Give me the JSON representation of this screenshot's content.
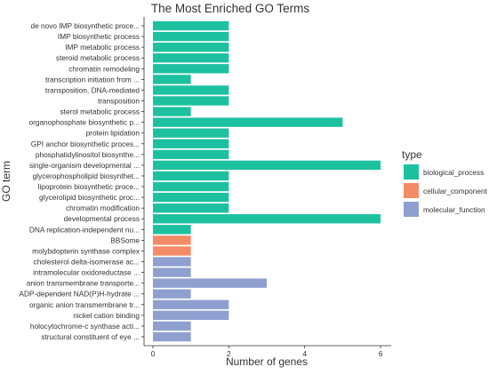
{
  "chart_data": {
    "type": "bar",
    "orientation": "horizontal",
    "title": "The Most Enriched GO Terms",
    "xlabel": "Number of genes",
    "ylabel": "GO term",
    "xlim": [
      0,
      6.3
    ],
    "xticks": [
      0,
      2,
      4,
      6
    ],
    "grid": false,
    "legend": {
      "title": "type",
      "placement": "right",
      "entries": [
        {
          "name": "biological_process",
          "color": "#1dc1a0"
        },
        {
          "name": "cellular_component",
          "color": "#f38b67"
        },
        {
          "name": "molecular_function",
          "color": "#8f9fcf"
        }
      ]
    },
    "categories": [
      "de novo IMP biosynthetic proce...",
      "IMP biosynthetic process",
      "IMP metabolic process",
      "steroid metabolic process",
      "chromatin remodeling",
      "transcription initiation from ...",
      "transposition, DNA-mediated",
      "transposition",
      "sterol metabolic process",
      "organophosphate biosynthetic p...",
      "protein lipidation",
      "GPI anchor biosynthetic proces...",
      "phosphatidylinositol biosynthe...",
      "single-organism developmental ...",
      "glycerophospholipid biosynthet...",
      "lipoprotein biosynthetic proce...",
      "glycerolipid biosynthetic proc...",
      "chromatin modification",
      "developmental process",
      "DNA replication-independent nu...",
      "BBSome",
      "molybdopterin synthase complex",
      "cholesterol delta-isomerase ac...",
      "intramolecular oxidoreductase ...",
      "anion transmembrane transporte...",
      "ADP-dependent NAD(P)H-hydrate ...",
      "organic anion transmembrane tr...",
      "nickel cation binding",
      "holocytochrome-c synthase acti...",
      "structural constituent of eye ..."
    ],
    "values": [
      2,
      2,
      2,
      2,
      2,
      1,
      2,
      2,
      1,
      5,
      2,
      2,
      2,
      6,
      2,
      2,
      2,
      2,
      6,
      1,
      1,
      1,
      1,
      1,
      3,
      1,
      2,
      2,
      1,
      1
    ],
    "types": [
      "biological_process",
      "biological_process",
      "biological_process",
      "biological_process",
      "biological_process",
      "biological_process",
      "biological_process",
      "biological_process",
      "biological_process",
      "biological_process",
      "biological_process",
      "biological_process",
      "biological_process",
      "biological_process",
      "biological_process",
      "biological_process",
      "biological_process",
      "biological_process",
      "biological_process",
      "biological_process",
      "cellular_component",
      "cellular_component",
      "molecular_function",
      "molecular_function",
      "molecular_function",
      "molecular_function",
      "molecular_function",
      "molecular_function",
      "molecular_function",
      "molecular_function"
    ]
  }
}
